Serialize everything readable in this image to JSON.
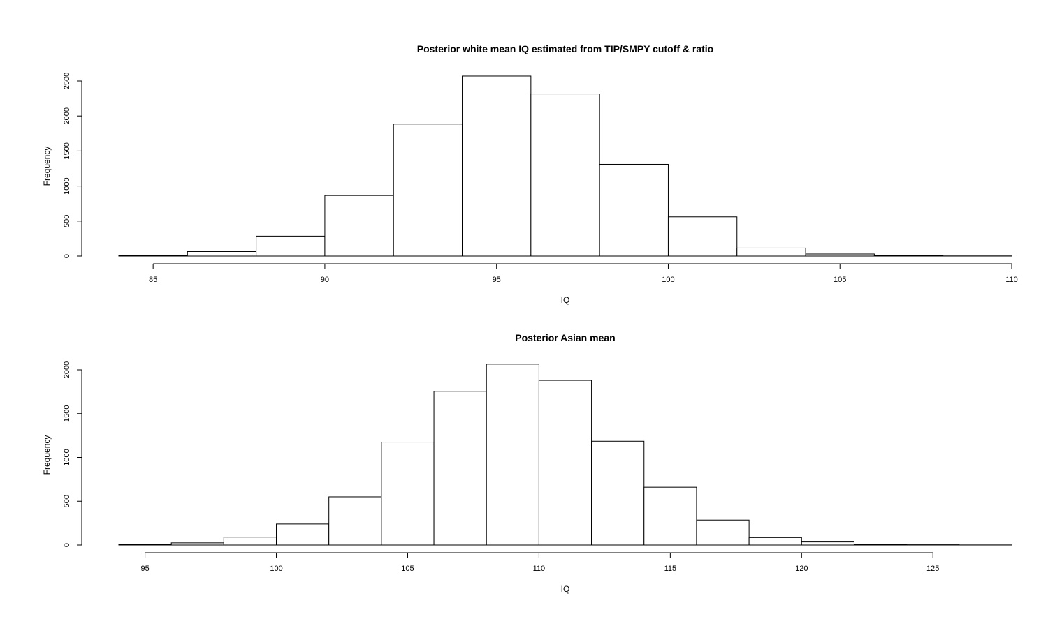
{
  "chart_data": [
    {
      "type": "bar",
      "title": "Posterior white mean IQ estimated from TIP/SMPY cutoff & ratio",
      "xlabel": "IQ",
      "ylabel": "Frequency",
      "xlim": [
        84,
        110
      ],
      "ylim": [
        0,
        2500
      ],
      "x_ticks": [
        85,
        90,
        95,
        100,
        105,
        110
      ],
      "y_ticks": [
        0,
        500,
        1000,
        1500,
        2000,
        2500
      ],
      "bins": [
        {
          "start": 84,
          "end": 86,
          "value": 8
        },
        {
          "start": 86,
          "end": 88,
          "value": 65
        },
        {
          "start": 88,
          "end": 90,
          "value": 285
        },
        {
          "start": 90,
          "end": 92,
          "value": 865
        },
        {
          "start": 92,
          "end": 94,
          "value": 1885
        },
        {
          "start": 94,
          "end": 96,
          "value": 2570
        },
        {
          "start": 96,
          "end": 98,
          "value": 2315
        },
        {
          "start": 98,
          "end": 100,
          "value": 1310
        },
        {
          "start": 100,
          "end": 102,
          "value": 560
        },
        {
          "start": 102,
          "end": 104,
          "value": 115
        },
        {
          "start": 104,
          "end": 106,
          "value": 30
        },
        {
          "start": 106,
          "end": 108,
          "value": 5
        },
        {
          "start": 108,
          "end": 110,
          "value": 2
        }
      ]
    },
    {
      "type": "bar",
      "title": "Posterior Asian mean",
      "xlabel": "IQ",
      "ylabel": "Frequency",
      "xlim": [
        94,
        128
      ],
      "ylim": [
        0,
        2000
      ],
      "x_ticks": [
        95,
        100,
        105,
        110,
        115,
        120,
        125
      ],
      "y_ticks": [
        0,
        500,
        1000,
        1500,
        2000
      ],
      "bins": [
        {
          "start": 94,
          "end": 96,
          "value": 5
        },
        {
          "start": 96,
          "end": 98,
          "value": 25
        },
        {
          "start": 98,
          "end": 100,
          "value": 90
        },
        {
          "start": 100,
          "end": 102,
          "value": 240
        },
        {
          "start": 102,
          "end": 104,
          "value": 550
        },
        {
          "start": 104,
          "end": 106,
          "value": 1175
        },
        {
          "start": 106,
          "end": 108,
          "value": 1755
        },
        {
          "start": 108,
          "end": 110,
          "value": 2065
        },
        {
          "start": 110,
          "end": 112,
          "value": 1880
        },
        {
          "start": 112,
          "end": 114,
          "value": 1185
        },
        {
          "start": 114,
          "end": 116,
          "value": 660
        },
        {
          "start": 116,
          "end": 118,
          "value": 285
        },
        {
          "start": 118,
          "end": 120,
          "value": 85
        },
        {
          "start": 120,
          "end": 122,
          "value": 35
        },
        {
          "start": 122,
          "end": 124,
          "value": 8
        },
        {
          "start": 124,
          "end": 126,
          "value": 3
        },
        {
          "start": 126,
          "end": 128,
          "value": 1
        }
      ]
    }
  ]
}
